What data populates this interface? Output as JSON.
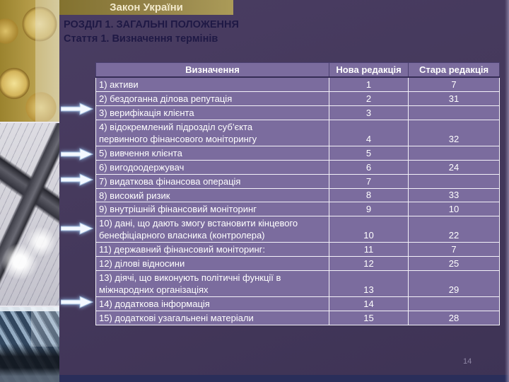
{
  "slide": {
    "banner_title": "Закон України",
    "heading_line1": "РОЗДІЛ 1. ЗАГАЛЬНІ ПОЛОЖЕННЯ",
    "heading_line2": "Стаття 1. Визначення термінів",
    "page_number": "14"
  },
  "table": {
    "headers": {
      "term": "Визначення",
      "new_edition": "Нова редакція",
      "old_edition": "Стара редакція"
    },
    "rows": [
      {
        "term": "1) активи",
        "new_edition": "1",
        "old_edition": "7"
      },
      {
        "term": "2) бездоганна ділова репутація",
        "new_edition": "2",
        "old_edition": "31"
      },
      {
        "term": "3) верифікація клієнта",
        "new_edition": "3",
        "old_edition": ""
      },
      {
        "term": "4) відокремлений підрозділ суб’єкта\nпервинного фінансового моніторингу",
        "new_edition": "4",
        "old_edition": "32"
      },
      {
        "term": "5) вивчення клієнта",
        "new_edition": "5",
        "old_edition": ""
      },
      {
        "term": "6) вигодоодержувач",
        "new_edition": "6",
        "old_edition": "24"
      },
      {
        "term": "7) видаткова фінансова операція",
        "new_edition": "7",
        "old_edition": ""
      },
      {
        "term": "8) високий ризик",
        "new_edition": "8",
        "old_edition": "33"
      },
      {
        "term": "9) внутрішній фінансовий моніторинг",
        "new_edition": "9",
        "old_edition": "10"
      },
      {
        "term": "10) дані, що дають змогу встановити кінцевого\nбенефіціарного власника (контролера)",
        "new_edition": "10",
        "old_edition": "22"
      },
      {
        "term": "11) державний фінансовий моніторинг:",
        "new_edition": "11",
        "old_edition": "7"
      },
      {
        "term": "12) ділові відносини",
        "new_edition": "12",
        "old_edition": "25"
      },
      {
        "term": "13) діячі, що виконують політичні функції в\nміжнародних організаціях",
        "new_edition": "13",
        "old_edition": "29"
      },
      {
        "term": "14) додаткова інформація",
        "new_edition": "14",
        "old_edition": ""
      },
      {
        "term": "15) додаткові узагальнені матеріали",
        "new_edition": "15",
        "old_edition": "28"
      }
    ]
  },
  "sidebar": {
    "photos": [
      "coins-photo",
      "documents-photo",
      "building-photo"
    ],
    "arrow_icon": "right-arrow",
    "arrow_count": 5
  },
  "colors": {
    "background": "#45395c",
    "table_cell": "#7b6c9e",
    "table_inner_border": "#f4f2f9",
    "table_text": "#ffffff",
    "banner_gold": "#94834a",
    "banner_text": "#f2e9cc",
    "heading_text": "#1f1945",
    "footer_strip": "#2a2e5a",
    "page_number": "#8f87a5",
    "arrow_fill": "#f3f8ff"
  }
}
